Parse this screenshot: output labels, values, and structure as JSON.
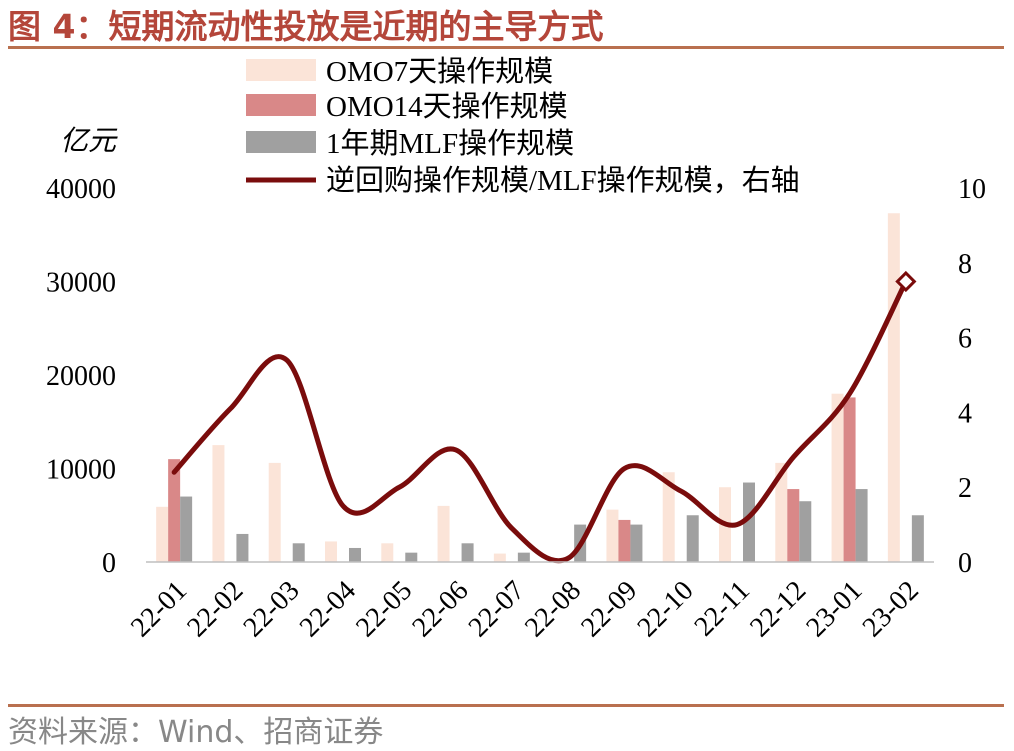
{
  "figure_title": "图 4：短期流动性投放是近期的主导方式",
  "source": "资料来源：Wind、招商证券",
  "chart_data": {
    "type": "bar",
    "title": "",
    "categories": [
      "22-01",
      "22-02",
      "22-03",
      "22-04",
      "22-05",
      "22-06",
      "22-07",
      "22-08",
      "22-09",
      "22-10",
      "22-11",
      "22-12",
      "23-01",
      "23-02"
    ],
    "y_left": {
      "label": "亿元",
      "ylim": [
        0,
        40000
      ],
      "ticks": [
        "0",
        "10000",
        "20000",
        "30000",
        "40000"
      ]
    },
    "y_right": {
      "ylim": [
        0,
        10
      ],
      "ticks": [
        "0",
        "2",
        "4",
        "6",
        "8",
        "10"
      ]
    },
    "grid": false,
    "legend_position": "top",
    "series": [
      {
        "name": "OMO7天操作规模",
        "type": "bar",
        "axis": "left",
        "color": "#fbe4d8",
        "values": [
          5900,
          12500,
          10600,
          2200,
          2000,
          6000,
          900,
          0,
          5600,
          9600,
          8000,
          10600,
          18000,
          37300
        ]
      },
      {
        "name": "OMO14天操作规模",
        "type": "bar",
        "axis": "left",
        "color": "#d98888",
        "values": [
          11000,
          0,
          0,
          0,
          0,
          0,
          0,
          0,
          4500,
          0,
          0,
          7800,
          17600,
          0
        ]
      },
      {
        "name": "1年期MLF操作规模",
        "type": "bar",
        "axis": "left",
        "color": "#a0a0a0",
        "values": [
          7000,
          3000,
          2000,
          1500,
          1000,
          2000,
          1000,
          4000,
          4000,
          5000,
          8500,
          6500,
          7800,
          5000
        ]
      },
      {
        "name": "逆回购操作规模/MLF操作规模，右轴",
        "type": "line",
        "axis": "right",
        "color": "#7a0c0c",
        "values": [
          2.4,
          4.1,
          5.4,
          1.5,
          2.0,
          3.0,
          0.9,
          0.1,
          2.5,
          1.9,
          1.0,
          2.8,
          4.5,
          7.5
        ]
      }
    ]
  }
}
